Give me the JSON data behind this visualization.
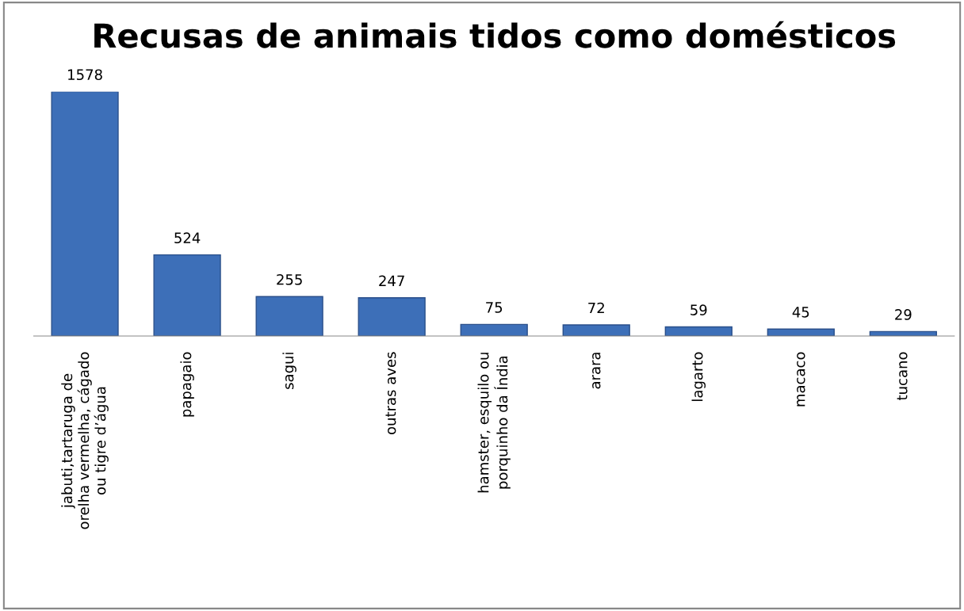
{
  "chart_data": {
    "type": "bar",
    "title": "Recusas de animais tidos como domésticos",
    "categories": [
      "jabuti,tartaruga de\norelha vermelha, cágado\nou tigre d’água",
      "papagaio",
      "sagui",
      "outras aves",
      "hamster, esquilo ou\nporquinho da Índia",
      "arara",
      "lagarto",
      "macaco",
      "tucano"
    ],
    "values": [
      1578,
      524,
      255,
      247,
      75,
      72,
      59,
      45,
      29
    ],
    "color": "#3d6fb8",
    "data_labels": true,
    "grid": false,
    "legend": false
  }
}
